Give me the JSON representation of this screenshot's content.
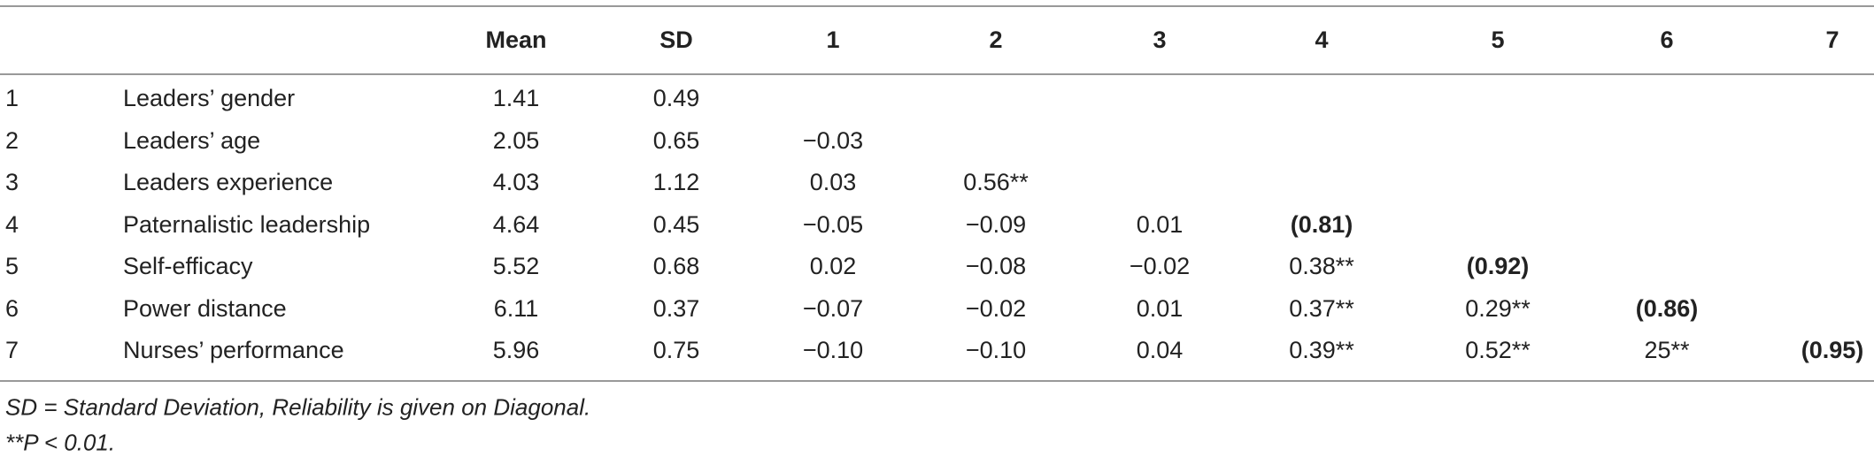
{
  "table": {
    "columns": [
      "Mean",
      "SD",
      "1",
      "2",
      "3",
      "4",
      "5",
      "6",
      "7"
    ],
    "rows": [
      {
        "number": "1",
        "label": "Leaders’ gender",
        "cells": [
          "1.41",
          "0.49"
        ]
      },
      {
        "number": "2",
        "label": "Leaders’ age",
        "cells": [
          "2.05",
          "0.65",
          "−0.03"
        ]
      },
      {
        "number": "3",
        "label": "Leaders experience",
        "cells": [
          "4.03",
          "1.12",
          "0.03",
          "0.56**"
        ]
      },
      {
        "number": "4",
        "label": "Paternalistic leadership",
        "cells": [
          "4.64",
          "0.45",
          "−0.05",
          "−0.09",
          "0.01",
          "(0.81)"
        ]
      },
      {
        "number": "5",
        "label": "Self-efficacy",
        "cells": [
          "5.52",
          "0.68",
          "0.02",
          "−0.08",
          "−0.02",
          "0.38**",
          "(0.92)"
        ]
      },
      {
        "number": "6",
        "label": "Power distance",
        "cells": [
          "6.11",
          "0.37",
          "−0.07",
          "−0.02",
          "0.01",
          "0.37**",
          "0.29**",
          "(0.86)"
        ]
      },
      {
        "number": "7",
        "label": "Nurses’ performance",
        "cells": [
          "5.96",
          "0.75",
          "−0.10",
          "−0.10",
          "0.04",
          "0.39**",
          "0.52**",
          "25**",
          "(0.95)"
        ]
      }
    ],
    "footnotes": [
      "SD = Standard Deviation, Reliability is given on Diagonal.",
      "**P < 0.01."
    ]
  }
}
